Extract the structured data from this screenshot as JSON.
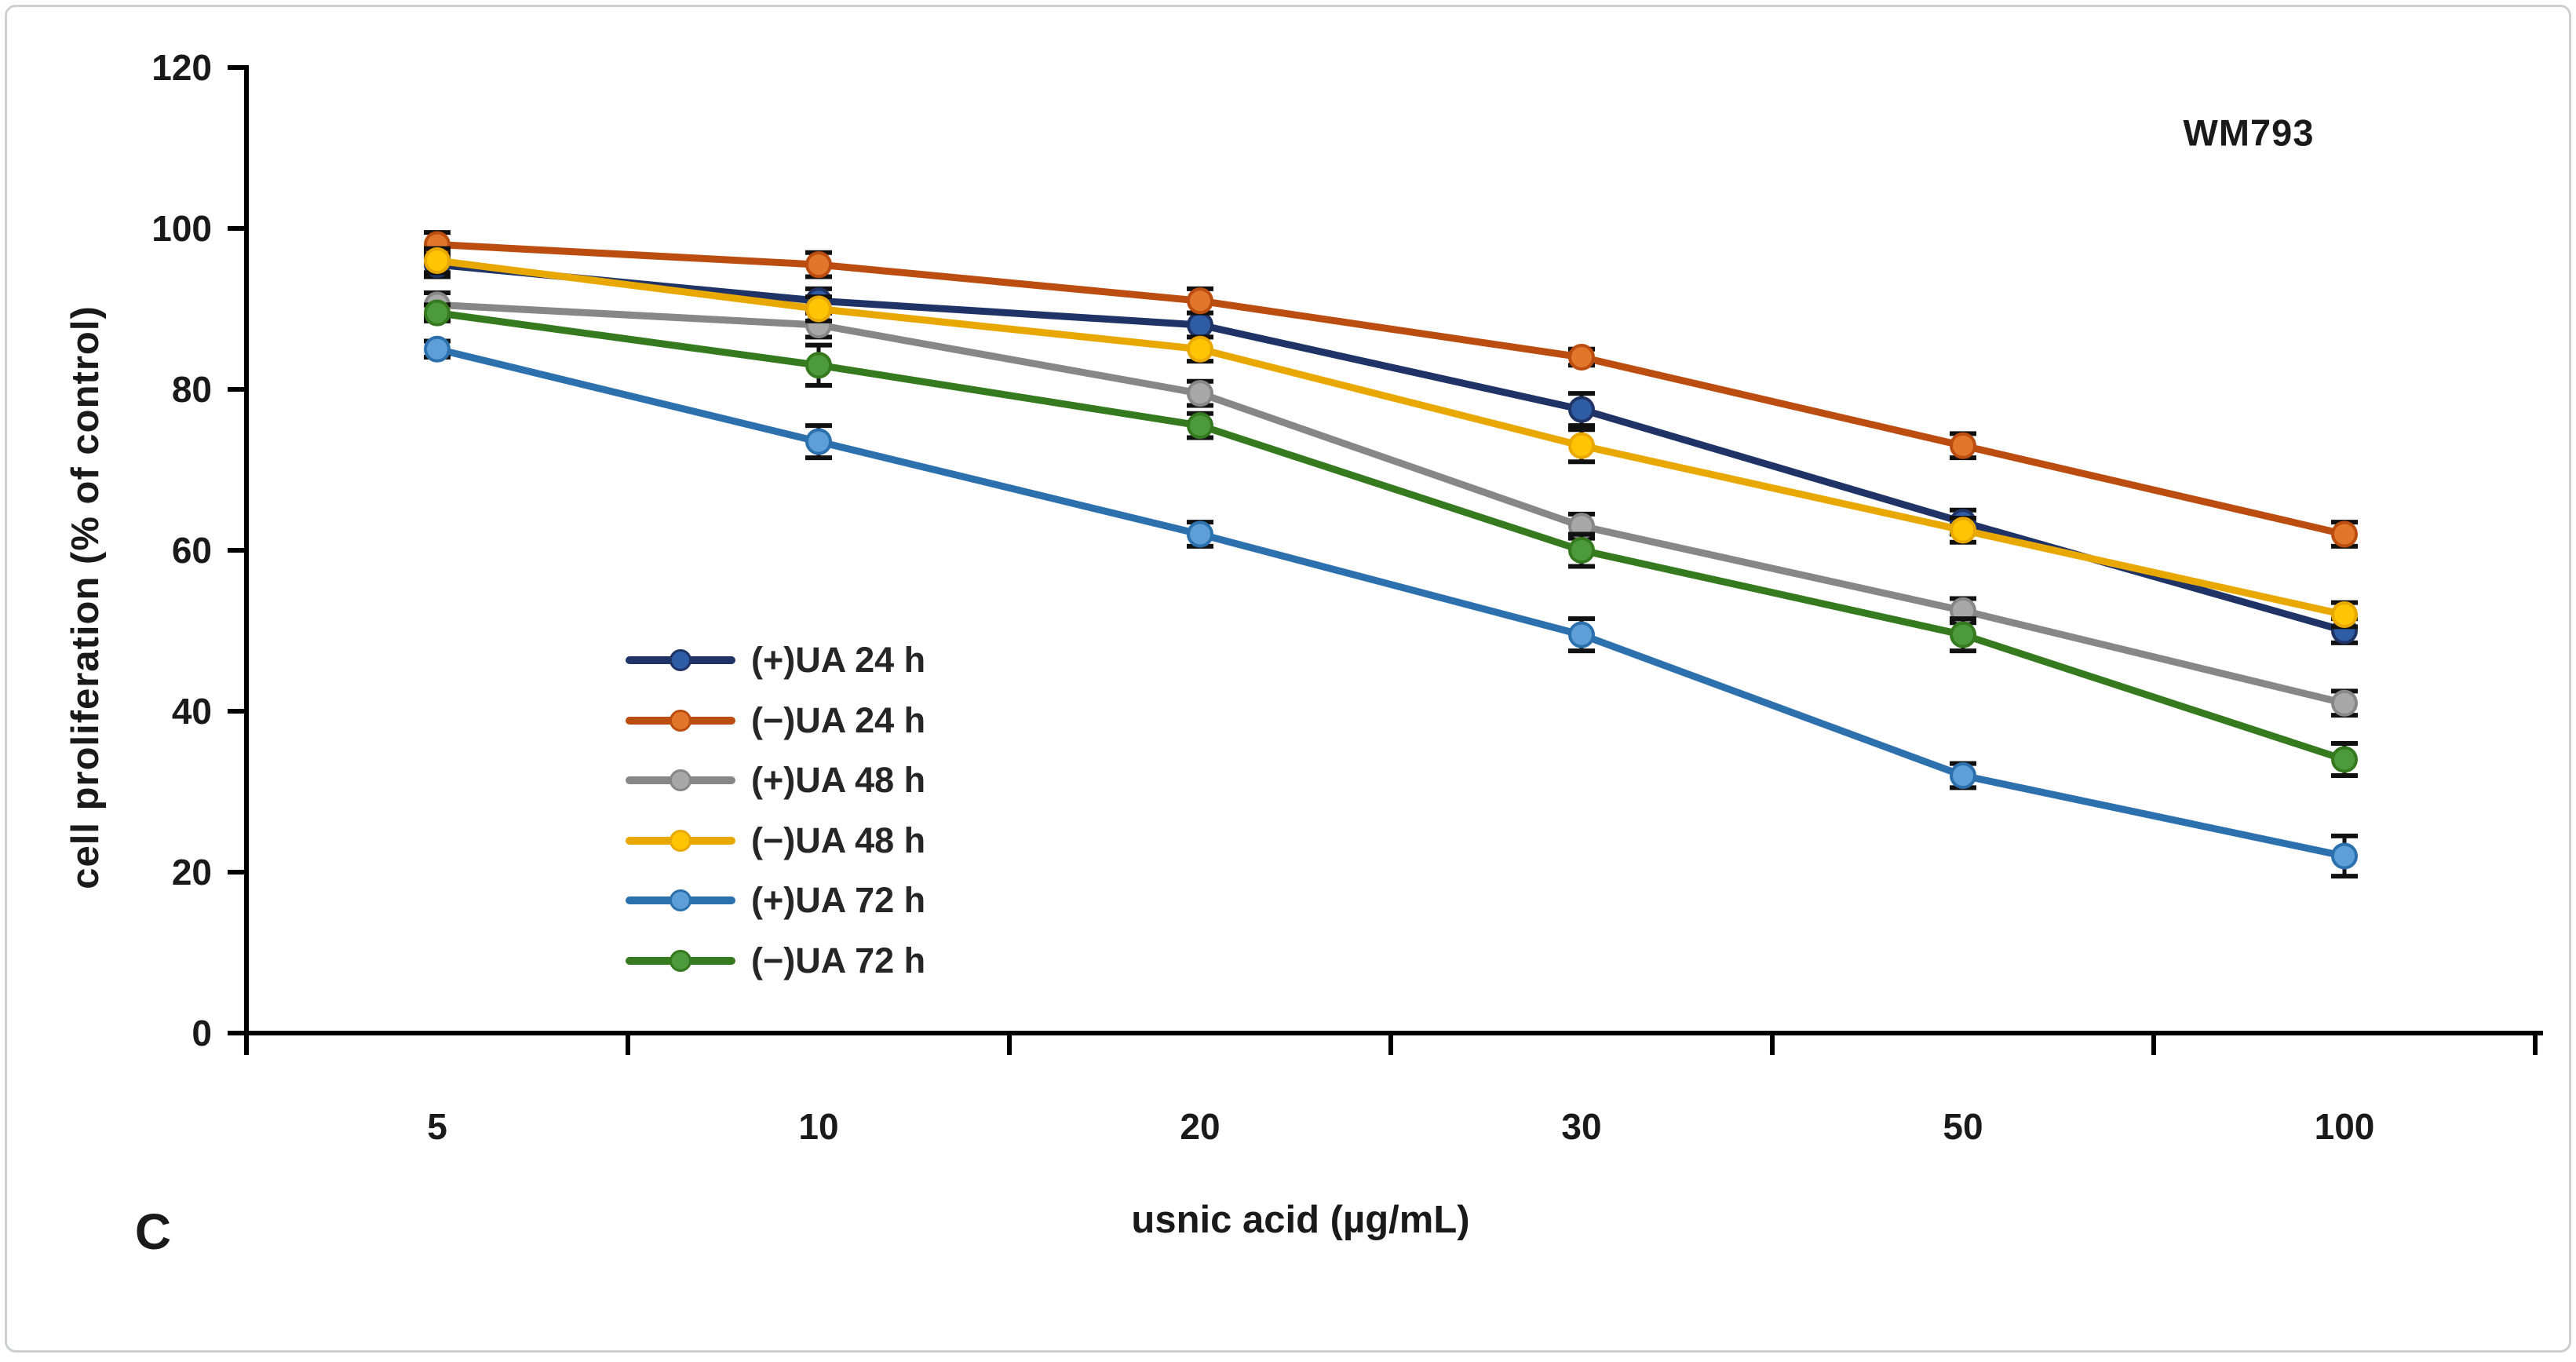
{
  "figure": {
    "panel_label": "C",
    "background_color": "#ffffff",
    "border_color": "#cdd0d2"
  },
  "chart_data": {
    "type": "line",
    "title": "WM793",
    "xlabel": "usnic acid (µg/mL)",
    "ylabel": "cell proliferation (% of control)",
    "categories": [
      "5",
      "10",
      "20",
      "30",
      "50",
      "100"
    ],
    "ylim": [
      0,
      120
    ],
    "yticks": [
      0,
      20,
      40,
      60,
      80,
      100,
      120
    ],
    "grid": false,
    "legend_position": "inside-left",
    "axis_color": "#000000",
    "tick_label_color": "#1a1a1a",
    "error_bar_color": "#111111",
    "series": [
      {
        "name": "(+)UA 24 h",
        "line_color": "#1f3366",
        "marker_color": "#2e5da6",
        "values": [
          95.5,
          91,
          88,
          77.5,
          63.5,
          50
        ],
        "errors": [
          1.5,
          1.5,
          1.5,
          2,
          1.5,
          1.5
        ]
      },
      {
        "name": "(−)UA 24 h",
        "line_color": "#bc4d10",
        "marker_color": "#e0772b",
        "values": [
          98,
          95.5,
          91,
          84,
          73,
          62
        ],
        "errors": [
          1.5,
          1.5,
          1.5,
          1,
          1.5,
          1.5
        ]
      },
      {
        "name": "(+)UA 48 h",
        "line_color": "#878787",
        "marker_color": "#a8a8a8",
        "values": [
          90.5,
          88,
          79.5,
          63,
          52.5,
          41
        ],
        "errors": [
          1.5,
          1.5,
          1.5,
          1.5,
          1.5,
          1.5
        ]
      },
      {
        "name": "(−)UA 48 h",
        "line_color": "#e9a800",
        "marker_color": "#ffc403",
        "values": [
          96,
          90,
          85,
          73,
          62.5,
          52
        ],
        "errors": [
          1.5,
          1.5,
          1.5,
          2,
          1.5,
          1.5
        ]
      },
      {
        "name": "(+)UA 72 h",
        "line_color": "#2d70ae",
        "marker_color": "#5d9fd6",
        "values": [
          85,
          73.5,
          62,
          49.5,
          32,
          22
        ],
        "errors": [
          1,
          2,
          1.5,
          2,
          1.5,
          2.5
        ]
      },
      {
        "name": "(−)UA 72 h",
        "line_color": "#357a1e",
        "marker_color": "#4c9a3c",
        "values": [
          89.5,
          83,
          75.5,
          60,
          49.5,
          34
        ],
        "errors": [
          1,
          2.5,
          1.5,
          2,
          2,
          2
        ]
      }
    ]
  }
}
